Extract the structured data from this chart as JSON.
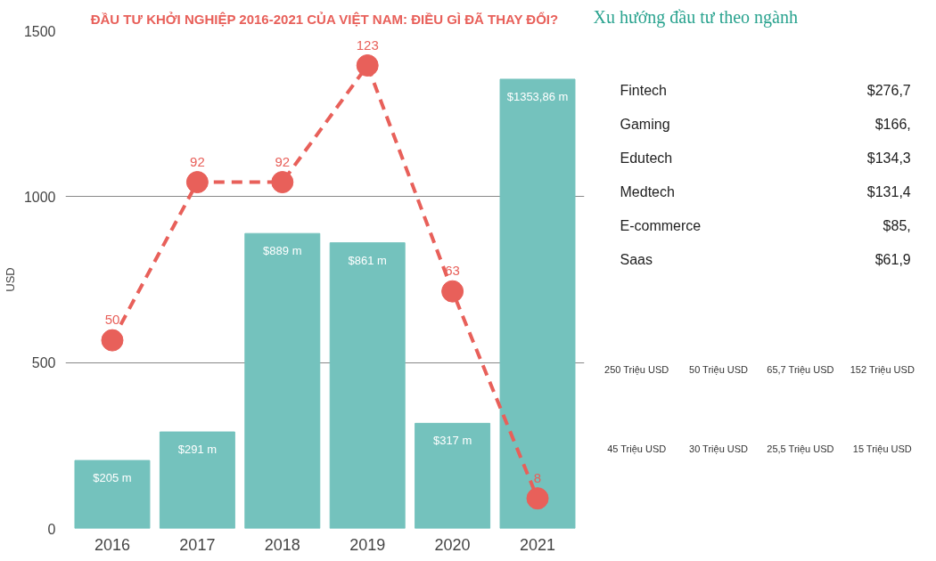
{
  "chart_data": [
    {
      "type": "bar",
      "title": "ĐẦU TƯ KHỞI NGHIỆP 2016-2021 CỦA VIỆT NAM: ĐIỀU GÌ ĐÃ THAY ĐỔI?",
      "ylabel": "USD",
      "categories": [
        "2016",
        "2017",
        "2018",
        "2019",
        "2020",
        "2021"
      ],
      "ylim": [
        0,
        1500
      ],
      "yticks": [
        0,
        500,
        1000,
        1500
      ],
      "grid": "y",
      "series": [
        {
          "type": "bar",
          "color": "#74c2bd",
          "values": [
            205,
            291,
            889,
            861,
            317,
            1353.86
          ],
          "value_labels": [
            "$205 m",
            "$291 m",
            "$889 m",
            "$861 m",
            "$317 m",
            "$1353,86 m"
          ]
        },
        {
          "type": "line",
          "axis": "y2",
          "color": "#e8605a",
          "values": [
            50,
            92,
            92,
            123,
            63,
            8
          ],
          "marker": "circle",
          "line_style": "dashed",
          "data_labels": true
        }
      ]
    },
    {
      "type": "other",
      "title": "Xu hướng đầu tư theo ngành",
      "annotations": [
        "Fintech",
        "$276,7",
        "Gaming",
        "$166,",
        "Edutech",
        "$134,3",
        "Medtech",
        "$131,4",
        "E-commerce",
        "$85,",
        "Saas",
        "$61,9",
        "250 Triệu USD",
        "50 Triệu USD",
        "65,7 Triệu USD",
        "152 Triệu USD",
        "45 Triệu USD",
        "30 Triệu USD",
        "25,5 Triệu USD",
        "15 Triệu USD"
      ]
    }
  ]
}
